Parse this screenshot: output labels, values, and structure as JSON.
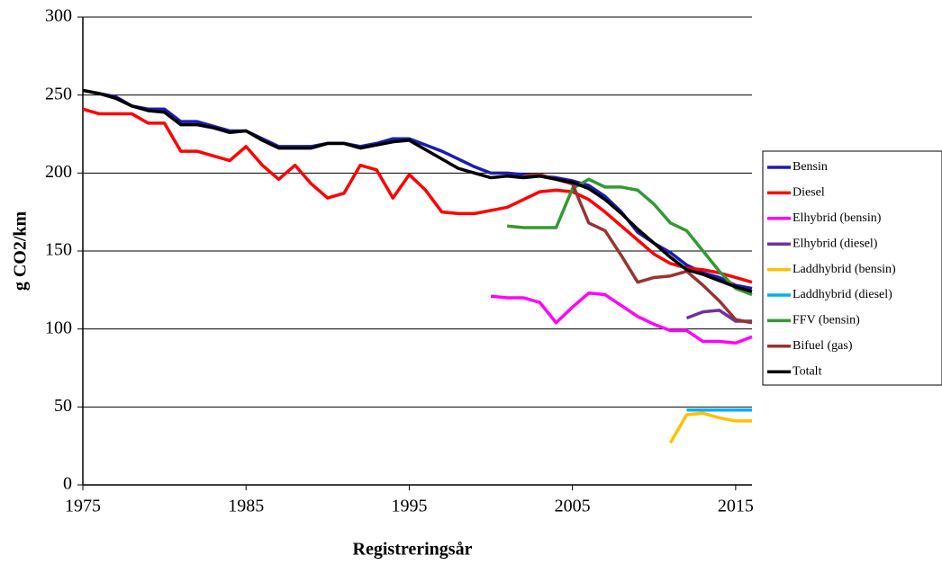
{
  "chart_data": {
    "type": "line",
    "x_label": "Registreringsår",
    "y_label": "g CO2/km",
    "x": [
      1975,
      1976,
      1977,
      1978,
      1979,
      1980,
      1981,
      1982,
      1983,
      1984,
      1985,
      1986,
      1987,
      1988,
      1989,
      1990,
      1991,
      1992,
      1993,
      1994,
      1995,
      1996,
      1997,
      1998,
      1999,
      2000,
      2001,
      2002,
      2003,
      2004,
      2005,
      2006,
      2007,
      2008,
      2009,
      2010,
      2011,
      2012,
      2013,
      2014,
      2015,
      2016
    ],
    "xlim": [
      1975,
      2016
    ],
    "xticks": [
      1975,
      1985,
      1995,
      2005,
      2015
    ],
    "ylim": [
      0,
      300
    ],
    "yticks": [
      0,
      50,
      100,
      150,
      200,
      250,
      300
    ],
    "grid": true,
    "legend": "right",
    "series": [
      {
        "name": "Bensin",
        "color": "#1c1cb4",
        "values": [
          253,
          251,
          249,
          243,
          241,
          241,
          233,
          233,
          230,
          227,
          227,
          222,
          217,
          217,
          217,
          219,
          219,
          217,
          219,
          222,
          222,
          218,
          214,
          209,
          204,
          200,
          200,
          199,
          198,
          197,
          195,
          192,
          185,
          175,
          162,
          155,
          149,
          141,
          136,
          133,
          128,
          126
        ]
      },
      {
        "name": "Diesel",
        "color": "#ff0000",
        "values": [
          241,
          238,
          238,
          238,
          232,
          232,
          214,
          214,
          211,
          208,
          217,
          205,
          196,
          205,
          193,
          184,
          187,
          205,
          202,
          184,
          199,
          189,
          175,
          174,
          174,
          176,
          178,
          183,
          188,
          189,
          188,
          183,
          175,
          166,
          157,
          148,
          142,
          139,
          138,
          136,
          133,
          130
        ]
      },
      {
        "name": "Elhybrid (bensin)",
        "color": "#ff00ff",
        "values": [
          null,
          null,
          null,
          null,
          null,
          null,
          null,
          null,
          null,
          null,
          null,
          null,
          null,
          null,
          null,
          null,
          null,
          null,
          null,
          null,
          null,
          null,
          null,
          null,
          null,
          121,
          120,
          120,
          117,
          104,
          114,
          123,
          122,
          115,
          108,
          103,
          99,
          99,
          92,
          92,
          91,
          95
        ]
      },
      {
        "name": "Elhybrid (diesel)",
        "color": "#7030a0",
        "values": [
          null,
          null,
          null,
          null,
          null,
          null,
          null,
          null,
          null,
          null,
          null,
          null,
          null,
          null,
          null,
          null,
          null,
          null,
          null,
          null,
          null,
          null,
          null,
          null,
          null,
          null,
          null,
          null,
          null,
          null,
          null,
          null,
          null,
          null,
          null,
          null,
          null,
          107,
          111,
          112,
          105,
          105
        ]
      },
      {
        "name": "Laddhybrid (bensin)",
        "color": "#ffc000",
        "values": [
          null,
          null,
          null,
          null,
          null,
          null,
          null,
          null,
          null,
          null,
          null,
          null,
          null,
          null,
          null,
          null,
          null,
          null,
          null,
          null,
          null,
          null,
          null,
          null,
          null,
          null,
          null,
          null,
          null,
          null,
          null,
          null,
          null,
          null,
          null,
          null,
          27,
          45,
          46,
          43,
          41,
          41
        ]
      },
      {
        "name": "Laddhybrid (diesel)",
        "color": "#00b0f0",
        "values": [
          null,
          null,
          null,
          null,
          null,
          null,
          null,
          null,
          null,
          null,
          null,
          null,
          null,
          null,
          null,
          null,
          null,
          null,
          null,
          null,
          null,
          null,
          null,
          null,
          null,
          null,
          null,
          null,
          null,
          null,
          null,
          null,
          null,
          null,
          null,
          null,
          null,
          48,
          48,
          48,
          48,
          48
        ]
      },
      {
        "name": "FFV (bensin)",
        "color": "#339933",
        "values": [
          null,
          null,
          null,
          null,
          null,
          null,
          null,
          null,
          null,
          null,
          null,
          null,
          null,
          null,
          null,
          null,
          null,
          null,
          null,
          null,
          null,
          null,
          null,
          null,
          null,
          null,
          166,
          165,
          165,
          165,
          190,
          196,
          191,
          191,
          189,
          180,
          168,
          163,
          150,
          137,
          126,
          122
        ]
      },
      {
        "name": "Bifuel (gas)",
        "color": "#993333",
        "values": [
          null,
          null,
          null,
          null,
          null,
          null,
          null,
          null,
          null,
          null,
          null,
          null,
          null,
          null,
          null,
          null,
          null,
          null,
          null,
          null,
          null,
          null,
          null,
          null,
          null,
          null,
          null,
          198,
          199,
          196,
          193,
          168,
          163,
          147,
          130,
          133,
          134,
          137,
          128,
          118,
          106,
          104
        ]
      },
      {
        "name": "Totalt",
        "color": "#000000",
        "values": [
          253,
          251,
          248,
          243,
          240,
          239,
          231,
          231,
          229,
          226,
          227,
          221,
          216,
          216,
          216,
          219,
          219,
          216,
          218,
          220,
          221,
          215,
          209,
          203,
          200,
          197,
          198,
          197,
          198,
          196,
          194,
          190,
          183,
          174,
          164,
          155,
          146,
          138,
          135,
          131,
          127,
          124
        ]
      }
    ]
  }
}
